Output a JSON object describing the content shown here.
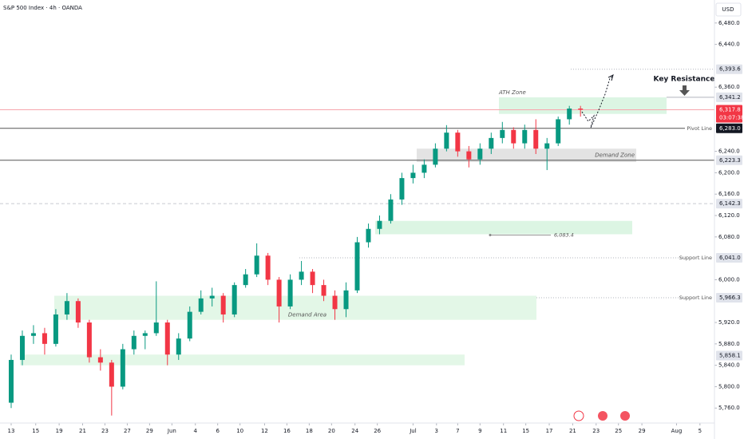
{
  "chart_data": {
    "type": "candlestick",
    "title": "S&P 500 Index · 4h · OANDA",
    "currency": "USD",
    "up_color": "#089981",
    "down_color": "#f23645",
    "candles": [
      [
        5770,
        5860,
        5760,
        5850
      ],
      [
        5850,
        5905,
        5840,
        5895
      ],
      [
        5895,
        5915,
        5880,
        5900
      ],
      [
        5900,
        5910,
        5860,
        5880
      ],
      [
        5880,
        5945,
        5875,
        5935
      ],
      [
        5935,
        5975,
        5925,
        5960
      ],
      [
        5960,
        5965,
        5910,
        5920
      ],
      [
        5920,
        5925,
        5845,
        5855
      ],
      [
        5855,
        5870,
        5830,
        5845
      ],
      [
        5845,
        5850,
        5746,
        5800
      ],
      [
        5800,
        5880,
        5795,
        5870
      ],
      [
        5870,
        5905,
        5860,
        5895
      ],
      [
        5895,
        5905,
        5870,
        5900
      ],
      [
        5900,
        5997,
        5895,
        5920
      ],
      [
        5920,
        5925,
        5840,
        5860
      ],
      [
        5860,
        5900,
        5850,
        5890
      ],
      [
        5890,
        5950,
        5885,
        5940
      ],
      [
        5940,
        5980,
        5935,
        5965
      ],
      [
        5965,
        5985,
        5950,
        5970
      ],
      [
        5970,
        5975,
        5920,
        5935
      ],
      [
        5935,
        5995,
        5930,
        5990
      ],
      [
        5990,
        6020,
        5985,
        6010
      ],
      [
        6010,
        6068,
        6005,
        6045
      ],
      [
        6045,
        6050,
        5990,
        6000
      ],
      [
        6000,
        6005,
        5920,
        5950
      ],
      [
        5950,
        6010,
        5945,
        6000
      ],
      [
        6000,
        6035,
        5990,
        6015
      ],
      [
        6015,
        6020,
        5975,
        5990
      ],
      [
        5990,
        6000,
        5960,
        5970
      ],
      [
        5970,
        5980,
        5925,
        5945
      ],
      [
        5945,
        5995,
        5930,
        5980
      ],
      [
        5980,
        6080,
        5975,
        6070
      ],
      [
        6070,
        6105,
        6060,
        6095
      ],
      [
        6095,
        6120,
        6085,
        6110
      ],
      [
        6110,
        6160,
        6105,
        6150
      ],
      [
        6150,
        6200,
        6140,
        6190
      ],
      [
        6190,
        6215,
        6180,
        6200
      ],
      [
        6200,
        6225,
        6190,
        6215
      ],
      [
        6215,
        6255,
        6210,
        6245
      ],
      [
        6245,
        6289,
        6240,
        6275
      ],
      [
        6275,
        6280,
        6230,
        6240
      ],
      [
        6240,
        6250,
        6210,
        6225
      ],
      [
        6225,
        6255,
        6215,
        6245
      ],
      [
        6245,
        6275,
        6235,
        6265
      ],
      [
        6265,
        6295,
        6255,
        6280
      ],
      [
        6280,
        6285,
        6245,
        6255
      ],
      [
        6255,
        6290,
        6245,
        6280
      ],
      [
        6280,
        6300,
        6235,
        6245
      ],
      [
        6245,
        6265,
        6205,
        6255
      ],
      [
        6255,
        6305,
        6250,
        6300
      ],
      [
        6300,
        6325,
        6290,
        6320
      ],
      [
        6320,
        6325,
        6305,
        6318
      ]
    ],
    "xlim": [
      0,
      64
    ],
    "xticks": [
      {
        "value": 1.0,
        "label": "13"
      },
      {
        "value": 3.2,
        "label": "15"
      },
      {
        "value": 5.3,
        "label": "19"
      },
      {
        "value": 7.4,
        "label": "21"
      },
      {
        "value": 9.4,
        "label": "23"
      },
      {
        "value": 11.4,
        "label": "27"
      },
      {
        "value": 13.4,
        "label": "29"
      },
      {
        "value": 15.4,
        "label": "Jun"
      },
      {
        "value": 17.5,
        "label": "4"
      },
      {
        "value": 19.5,
        "label": "6"
      },
      {
        "value": 21.5,
        "label": "10"
      },
      {
        "value": 23.7,
        "label": "12"
      },
      {
        "value": 25.7,
        "label": "16"
      },
      {
        "value": 27.7,
        "label": "18"
      },
      {
        "value": 29.7,
        "label": "20"
      },
      {
        "value": 31.8,
        "label": "24"
      },
      {
        "value": 33.8,
        "label": "26"
      },
      {
        "value": 37.0,
        "label": "Jul"
      },
      {
        "value": 39.1,
        "label": "3"
      },
      {
        "value": 41.0,
        "label": "7"
      },
      {
        "value": 43.0,
        "label": "9"
      },
      {
        "value": 45.1,
        "label": "11"
      },
      {
        "value": 47.1,
        "label": "15"
      },
      {
        "value": 49.2,
        "label": "17"
      },
      {
        "value": 51.3,
        "label": "21"
      },
      {
        "value": 53.4,
        "label": "23"
      },
      {
        "value": 55.4,
        "label": "25"
      },
      {
        "value": 57.5,
        "label": "29"
      },
      {
        "value": 60.6,
        "label": "Aug"
      },
      {
        "value": 62.7,
        "label": "5"
      }
    ],
    "ylim": [
      5732,
      6523
    ],
    "yticks": [
      {
        "value": 6480,
        "label": "6,480.0"
      },
      {
        "value": 6440,
        "label": "6,440.0"
      },
      {
        "value": 6360,
        "label": "6,360.0"
      },
      {
        "value": 6240,
        "label": "6,240.0"
      },
      {
        "value": 6200,
        "label": "6,200.0"
      },
      {
        "value": 6160,
        "label": "6,160.0"
      },
      {
        "value": 6120,
        "label": "6,120.0"
      },
      {
        "value": 6080,
        "label": "6,080.0"
      },
      {
        "value": 6000,
        "label": "6,000.0"
      },
      {
        "value": 5920,
        "label": "5,920.0"
      },
      {
        "value": 5880,
        "label": "5,880.0"
      },
      {
        "value": 5840,
        "label": "5,840.0"
      },
      {
        "value": 5800,
        "label": "5,800.0"
      },
      {
        "value": 5760,
        "label": "5,760.0"
      }
    ],
    "levels": [
      {
        "value": 6393.6,
        "label": "6,393.6",
        "line": "dotted",
        "color": "#e0e3eb"
      },
      {
        "value": 6341.2,
        "label": "6,341.2",
        "line": "solid",
        "color": "#e0e3eb"
      },
      {
        "value": 6317.8,
        "label": "6,317.8",
        "countdown": "03:07:38",
        "line": "solid",
        "color": "#f23645"
      },
      {
        "value": 6283.0,
        "label": "6,283.0",
        "note": "Pivot Line",
        "line": "solid",
        "color": "#131722"
      },
      {
        "value": 6223.3,
        "label": "6,223.3",
        "line": "solid",
        "color": "#e0e3eb"
      },
      {
        "value": 6142.3,
        "label": "6,142.3",
        "line": "dashed",
        "color": "#e0e3eb"
      },
      {
        "value": 6041.0,
        "label": "6,041.0",
        "note": "Support Line",
        "line": "dotted",
        "color": "#e0e3eb"
      },
      {
        "value": 5966.3,
        "label": "5,966.3",
        "note": "Support Line",
        "line": "dotted",
        "color": "#e0e3eb"
      },
      {
        "value": 5858.1,
        "label": "5,858.1",
        "line": "none",
        "color": "#e0e3eb"
      }
    ],
    "zones": [
      {
        "low": 6310,
        "high": 6341,
        "label": "ATH Zone",
        "color": "#dcf5e3"
      },
      {
        "low": 6220,
        "high": 6245,
        "label": "Demand Zone",
        "color": "#e3e3e3"
      },
      {
        "low": 6085,
        "high": 6110,
        "color": "#dcf5e3"
      },
      {
        "low": 5925,
        "high": 5970,
        "label": "Demand Area",
        "color": "#e3f7e7"
      },
      {
        "low": 5840,
        "high": 5860,
        "color": "#e3f7e7"
      }
    ],
    "measure": {
      "value": 6083.4,
      "label": "6,083.4"
    },
    "annotation": "Key Resistance"
  }
}
